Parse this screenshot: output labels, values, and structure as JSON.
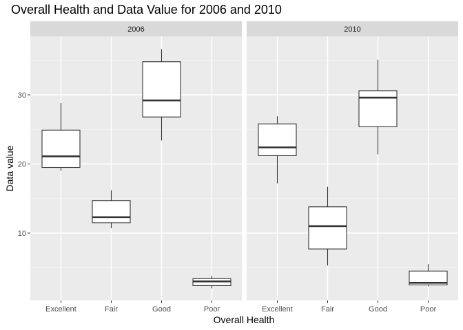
{
  "chart_data": {
    "type": "boxplot",
    "title": "Overall Health and Data Value for 2006 and 2010",
    "xlabel": "Overall Health",
    "ylabel": "Data value",
    "categories": [
      "Excellent",
      "Fair",
      "Good",
      "Poor"
    ],
    "y_ticks": [
      10,
      20,
      30
    ],
    "y_tick_labels": [
      "10",
      "20",
      "30"
    ],
    "ylim": [
      0,
      38
    ],
    "grid": true,
    "facets": [
      {
        "label": "2006",
        "boxes": [
          {
            "category": "Excellent",
            "min": 19.0,
            "q1": 19.5,
            "median": 21.1,
            "q3": 24.9,
            "max": 28.8
          },
          {
            "category": "Fair",
            "min": 10.7,
            "q1": 11.5,
            "median": 12.3,
            "q3": 14.7,
            "max": 16.2
          },
          {
            "category": "Good",
            "min": 23.4,
            "q1": 26.8,
            "median": 29.2,
            "q3": 34.8,
            "max": 36.6
          },
          {
            "category": "Poor",
            "min": 2.0,
            "q1": 2.4,
            "median": 3.0,
            "q3": 3.4,
            "max": 3.8
          }
        ]
      },
      {
        "label": "2010",
        "boxes": [
          {
            "category": "Excellent",
            "min": 17.2,
            "q1": 21.2,
            "median": 22.4,
            "q3": 25.8,
            "max": 26.9
          },
          {
            "category": "Fair",
            "min": 5.3,
            "q1": 7.7,
            "median": 11.0,
            "q3": 13.8,
            "max": 16.7
          },
          {
            "category": "Good",
            "min": 21.4,
            "q1": 25.4,
            "median": 29.6,
            "q3": 30.6,
            "max": 35.1
          },
          {
            "category": "Poor",
            "min": 2.3,
            "q1": 2.5,
            "median": 2.8,
            "q3": 4.5,
            "max": 5.5
          }
        ]
      }
    ]
  }
}
